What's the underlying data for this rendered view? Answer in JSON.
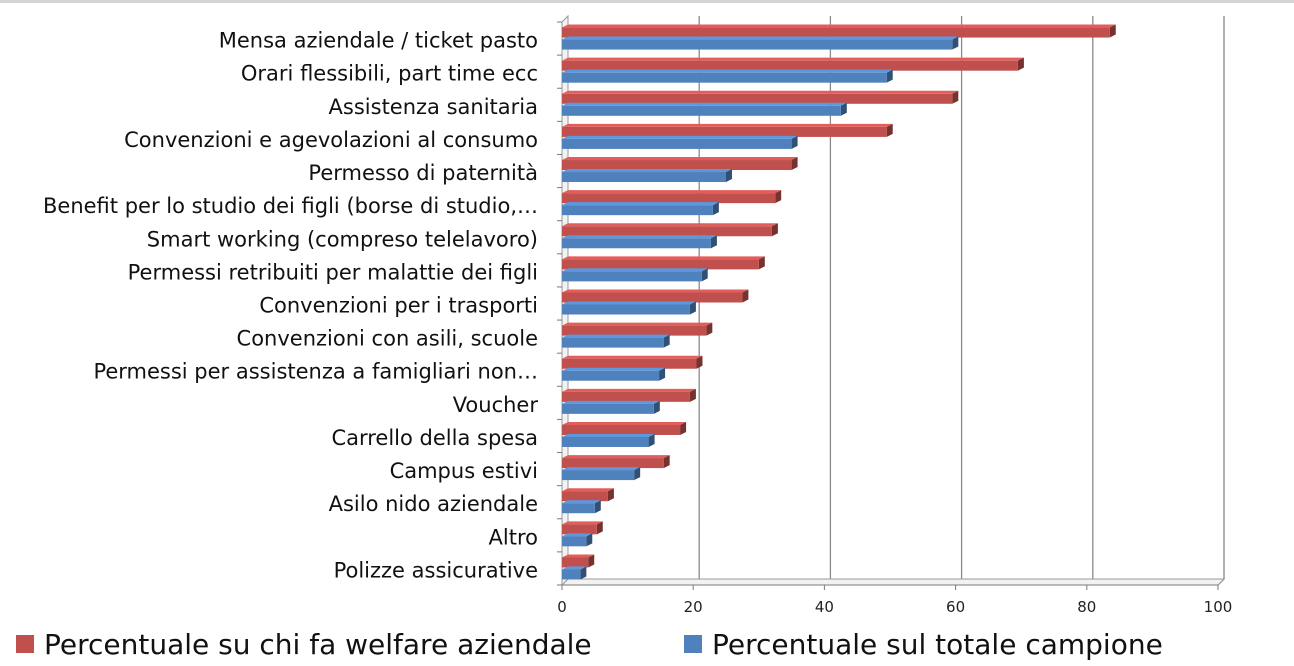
{
  "chart_data": {
    "type": "bar",
    "orientation": "horizontal",
    "style": "3d",
    "categories": [
      "Mensa aziendale / ticket pasto",
      "Orari flessibili, part time ecc",
      "Assistenza sanitaria",
      "Convenzioni e agevolazioni al consumo",
      "Permesso di paternità",
      "Benefit per lo studio dei figli (borse di studio,…",
      "Smart working (compreso telelavoro)",
      "Permessi retribuiti per malattie dei figli",
      "Convenzioni per i trasporti",
      "Convenzioni con asili, scuole",
      "Permessi per assistenza a famigliari non…",
      "Voucher",
      "Carrello della spesa",
      "Campus estivi",
      "Asilo nido aziendale",
      "Altro",
      "Polizze assicurative"
    ],
    "series": [
      {
        "name": "Percentuale su chi fa welfare aziendale",
        "color": "#c0504d",
        "values": [
          83.5,
          69.5,
          59.5,
          49.5,
          35,
          32.5,
          32,
          30,
          27.5,
          22,
          20.5,
          19.5,
          18,
          15.5,
          7,
          5.3,
          4
        ]
      },
      {
        "name": "Percentuale sul totale campione",
        "color": "#4f81bd",
        "values": [
          59.5,
          49.5,
          42.5,
          35,
          25,
          23,
          22.7,
          21.3,
          19.5,
          15.5,
          14.8,
          14,
          13.2,
          11,
          5,
          3.7,
          2.8
        ]
      }
    ],
    "xlim": [
      0,
      100
    ],
    "xticks": [
      "0",
      "20",
      "40",
      "60",
      "80",
      "100"
    ],
    "grid": true,
    "legend_position": "bottom",
    "title": "",
    "xlabel": "",
    "ylabel": ""
  }
}
